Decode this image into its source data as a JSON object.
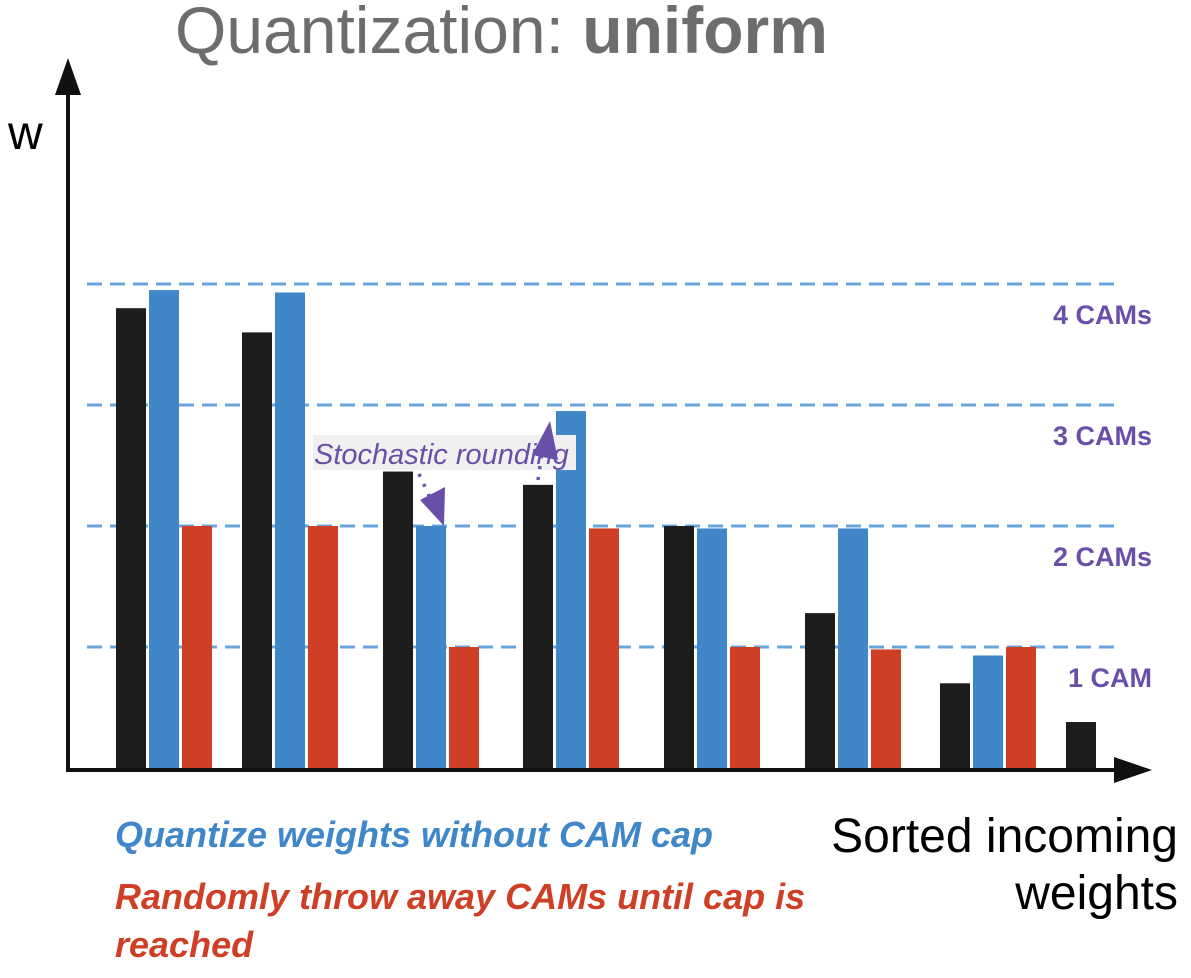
{
  "chart_data": {
    "type": "bar",
    "title_prefix": "Quantization: ",
    "title_emphasis": "uniform",
    "ylabel": "w",
    "xlabel_lines": [
      "Sorted incoming",
      "weights"
    ],
    "ylim": [
      0,
      4.4
    ],
    "groups": 8,
    "series": [
      {
        "name": "",
        "color": "#1c1c1c",
        "values": [
          3.8,
          3.6,
          2.45,
          2.34,
          2.0,
          1.28,
          0.7,
          0.38
        ]
      },
      {
        "name": "Quantize weights without CAM cap",
        "color": "#3f87c9",
        "values": [
          3.95,
          3.93,
          2.0,
          2.95,
          1.98,
          1.98,
          0.93,
          null
        ]
      },
      {
        "name": "Randomly throw away CAMs until cap is reached",
        "color": "#cf3f26",
        "values": [
          2.0,
          2.0,
          1.0,
          1.98,
          1.0,
          0.98,
          1.0,
          null
        ]
      }
    ],
    "levels": [
      {
        "value": 1,
        "label": "1 CAM"
      },
      {
        "value": 2,
        "label": "2 CAMs"
      },
      {
        "value": 3,
        "label": "3 CAMs"
      },
      {
        "value": 4,
        "label": "4 CAMs"
      }
    ],
    "annotation": {
      "text": "Stochastic rounding"
    },
    "legend": {
      "blue_line": "Quantize weights without CAM cap",
      "red_lines": [
        "Randomly throw away CAMs until cap is",
        "reached"
      ]
    },
    "colors": {
      "level_line": "#6aa4dc",
      "level_text": "#6a4fa8",
      "axis": "#111111",
      "title": "#6d6d6d"
    }
  }
}
